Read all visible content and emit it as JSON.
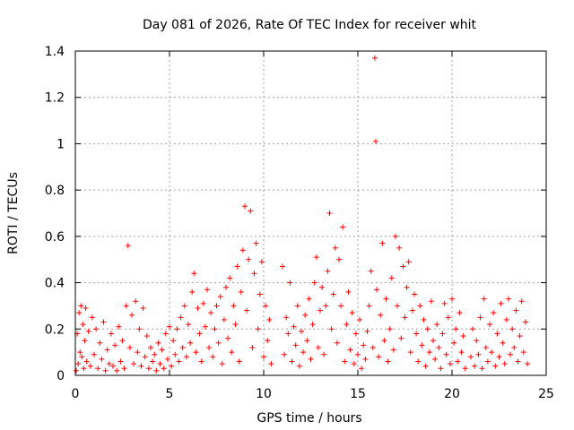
{
  "chart_data": {
    "type": "scatter",
    "title": "Day 081 of 2026, Rate Of TEC Index for receiver whit",
    "xlabel": "GPS time / hours",
    "ylabel": "ROTI / TECUs",
    "xlim": [
      0,
      25
    ],
    "ylim": [
      0,
      1.4
    ],
    "xticks": [
      0,
      5,
      10,
      15,
      20,
      25
    ],
    "yticks": [
      0,
      0.2,
      0.4,
      0.6,
      0.8,
      1,
      1.2,
      1.4
    ],
    "xtick_labels": [
      "0",
      "5",
      "10",
      "15",
      "20",
      "25"
    ],
    "ytick_labels": [
      "0",
      "0.2",
      "0.4",
      "0.6",
      "0.8",
      "1",
      "1.2",
      "1.4"
    ],
    "grid": true,
    "marker": "plus",
    "series_color": "#ff0000",
    "series": [
      {
        "name": "ROTI",
        "points": [
          [
            0.05,
            0.02
          ],
          [
            0.1,
            0.18
          ],
          [
            0.15,
            0.05
          ],
          [
            0.2,
            0.27
          ],
          [
            0.25,
            0.1
          ],
          [
            0.3,
            0.3
          ],
          [
            0.35,
            0.08
          ],
          [
            0.4,
            0.22
          ],
          [
            0.45,
            0.03
          ],
          [
            0.5,
            0.15
          ],
          [
            0.55,
            0.29
          ],
          [
            0.6,
            0.06
          ],
          [
            0.7,
            0.19
          ],
          [
            0.8,
            0.04
          ],
          [
            0.9,
            0.25
          ],
          [
            1.0,
            0.09
          ],
          [
            1.1,
            0.2
          ],
          [
            1.2,
            0.03
          ],
          [
            1.3,
            0.14
          ],
          [
            1.4,
            0.07
          ],
          [
            1.5,
            0.23
          ],
          [
            1.6,
            0.02
          ],
          [
            1.7,
            0.11
          ],
          [
            1.8,
            0.05
          ],
          [
            1.9,
            0.18
          ],
          [
            2.0,
            0.04
          ],
          [
            2.1,
            0.13
          ],
          [
            2.2,
            0.02
          ],
          [
            2.3,
            0.21
          ],
          [
            2.4,
            0.06
          ],
          [
            2.5,
            0.15
          ],
          [
            2.6,
            0.03
          ],
          [
            2.7,
            0.3
          ],
          [
            2.8,
            0.56
          ],
          [
            2.9,
            0.12
          ],
          [
            3.0,
            0.26
          ],
          [
            3.1,
            0.05
          ],
          [
            3.2,
            0.32
          ],
          [
            3.3,
            0.1
          ],
          [
            3.4,
            0.2
          ],
          [
            3.5,
            0.04
          ],
          [
            3.6,
            0.29
          ],
          [
            3.7,
            0.08
          ],
          [
            3.8,
            0.17
          ],
          [
            3.9,
            0.03
          ],
          [
            4.0,
            0.12
          ],
          [
            4.1,
            0.06
          ],
          [
            4.2,
            0.09
          ],
          [
            4.3,
            0.02
          ],
          [
            4.4,
            0.14
          ],
          [
            4.5,
            0.05
          ],
          [
            4.6,
            0.11
          ],
          [
            4.7,
            0.03
          ],
          [
            4.8,
            0.18
          ],
          [
            4.9,
            0.07
          ],
          [
            5.0,
            0.21
          ],
          [
            5.1,
            0.04
          ],
          [
            5.2,
            0.15
          ],
          [
            5.3,
            0.09
          ],
          [
            5.4,
            0.2
          ],
          [
            5.5,
            0.06
          ],
          [
            5.6,
            0.25
          ],
          [
            5.7,
            0.12
          ],
          [
            5.8,
            0.3
          ],
          [
            5.9,
            0.08
          ],
          [
            6.0,
            0.22
          ],
          [
            6.1,
            0.14
          ],
          [
            6.2,
            0.36
          ],
          [
            6.3,
            0.44
          ],
          [
            6.4,
            0.1
          ],
          [
            6.5,
            0.29
          ],
          [
            6.6,
            0.18
          ],
          [
            6.7,
            0.06
          ],
          [
            6.8,
            0.31
          ],
          [
            6.9,
            0.21
          ],
          [
            7.0,
            0.37
          ],
          [
            7.1,
            0.12
          ],
          [
            7.2,
            0.27
          ],
          [
            7.3,
            0.08
          ],
          [
            7.4,
            0.2
          ],
          [
            7.5,
            0.3
          ],
          [
            7.6,
            0.14
          ],
          [
            7.7,
            0.34
          ],
          [
            7.8,
            0.05
          ],
          [
            7.9,
            0.24
          ],
          [
            8.0,
            0.38
          ],
          [
            8.1,
            0.16
          ],
          [
            8.2,
            0.42
          ],
          [
            8.3,
            0.1
          ],
          [
            8.4,
            0.3
          ],
          [
            8.5,
            0.22
          ],
          [
            8.6,
            0.47
          ],
          [
            8.7,
            0.06
          ],
          [
            8.8,
            0.36
          ],
          [
            8.9,
            0.54
          ],
          [
            9.0,
            0.73
          ],
          [
            9.1,
            0.28
          ],
          [
            9.2,
            0.5
          ],
          [
            9.3,
            0.71
          ],
          [
            9.4,
            0.12
          ],
          [
            9.5,
            0.44
          ],
          [
            9.6,
            0.57
          ],
          [
            9.7,
            0.2
          ],
          [
            9.8,
            0.35
          ],
          [
            9.9,
            0.49
          ],
          [
            10.0,
            0.08
          ],
          [
            10.1,
            0.3
          ],
          [
            10.2,
            0.15
          ],
          [
            10.3,
            0.24
          ],
          [
            10.4,
            0.05
          ],
          [
            11.0,
            0.47
          ],
          [
            11.1,
            0.09
          ],
          [
            11.2,
            0.25
          ],
          [
            11.3,
            0.18
          ],
          [
            11.4,
            0.4
          ],
          [
            11.5,
            0.06
          ],
          [
            11.6,
            0.21
          ],
          [
            11.7,
            0.13
          ],
          [
            11.8,
            0.3
          ],
          [
            11.9,
            0.04
          ],
          [
            12.0,
            0.19
          ],
          [
            12.1,
            0.1
          ],
          [
            12.2,
            0.26
          ],
          [
            12.3,
            0.15
          ],
          [
            12.4,
            0.33
          ],
          [
            12.5,
            0.07
          ],
          [
            12.6,
            0.22
          ],
          [
            12.7,
            0.4
          ],
          [
            12.8,
            0.51
          ],
          [
            12.9,
            0.12
          ],
          [
            13.0,
            0.28
          ],
          [
            13.1,
            0.38
          ],
          [
            13.2,
            0.09
          ],
          [
            13.3,
            0.3
          ],
          [
            13.4,
            0.45
          ],
          [
            13.5,
            0.7
          ],
          [
            13.6,
            0.2
          ],
          [
            13.7,
            0.35
          ],
          [
            13.8,
            0.55
          ],
          [
            13.9,
            0.14
          ],
          [
            14.0,
            0.5
          ],
          [
            14.1,
            0.3
          ],
          [
            14.2,
            0.64
          ],
          [
            14.3,
            0.06
          ],
          [
            14.4,
            0.22
          ],
          [
            14.5,
            0.36
          ],
          [
            14.6,
            0.11
          ],
          [
            14.7,
            0.27
          ],
          [
            14.8,
            0.05
          ],
          [
            14.9,
            0.18
          ],
          [
            15.0,
            0.09
          ],
          [
            15.1,
            0.24
          ],
          [
            15.2,
            0.03
          ],
          [
            15.3,
            0.13
          ],
          [
            15.4,
            0.07
          ],
          [
            15.5,
            0.19
          ],
          [
            15.6,
            0.3
          ],
          [
            15.7,
            0.45
          ],
          [
            15.8,
            0.12
          ],
          [
            15.9,
            1.37
          ],
          [
            15.95,
            1.01
          ],
          [
            16.0,
            0.37
          ],
          [
            16.1,
            0.08
          ],
          [
            16.2,
            0.26
          ],
          [
            16.3,
            0.57
          ],
          [
            16.4,
            0.15
          ],
          [
            16.5,
            0.33
          ],
          [
            16.6,
            0.06
          ],
          [
            16.7,
            0.2
          ],
          [
            16.8,
            0.42
          ],
          [
            16.9,
            0.11
          ],
          [
            17.0,
            0.6
          ],
          [
            17.1,
            0.3
          ],
          [
            17.2,
            0.55
          ],
          [
            17.3,
            0.16
          ],
          [
            17.4,
            0.47
          ],
          [
            17.5,
            0.25
          ],
          [
            17.6,
            0.38
          ],
          [
            17.7,
            0.49
          ],
          [
            17.8,
            0.1
          ],
          [
            17.9,
            0.28
          ],
          [
            18.0,
            0.35
          ],
          [
            18.1,
            0.18
          ],
          [
            18.2,
            0.06
          ],
          [
            18.3,
            0.3
          ],
          [
            18.4,
            0.13
          ],
          [
            18.5,
            0.24
          ],
          [
            18.6,
            0.04
          ],
          [
            18.7,
            0.2
          ],
          [
            18.8,
            0.1
          ],
          [
            18.9,
            0.32
          ],
          [
            19.0,
            0.15
          ],
          [
            19.1,
            0.07
          ],
          [
            19.2,
            0.22
          ],
          [
            19.3,
            0.12
          ],
          [
            19.4,
            0.03
          ],
          [
            19.5,
            0.18
          ],
          [
            19.6,
            0.31
          ],
          [
            19.7,
            0.09
          ],
          [
            19.8,
            0.25
          ],
          [
            19.9,
            0.05
          ],
          [
            20.0,
            0.33
          ],
          [
            20.1,
            0.14
          ],
          [
            20.2,
            0.2
          ],
          [
            20.3,
            0.06
          ],
          [
            20.4,
            0.27
          ],
          [
            20.5,
            0.1
          ],
          [
            20.6,
            0.17
          ],
          [
            20.7,
            0.03
          ],
          [
            21.0,
            0.08
          ],
          [
            21.1,
            0.2
          ],
          [
            21.2,
            0.04
          ],
          [
            21.3,
            0.15
          ],
          [
            21.4,
            0.09
          ],
          [
            21.5,
            0.25
          ],
          [
            21.6,
            0.03
          ],
          [
            21.7,
            0.33
          ],
          [
            21.8,
            0.12
          ],
          [
            21.9,
            0.06
          ],
          [
            22.0,
            0.22
          ],
          [
            22.1,
            0.1
          ],
          [
            22.2,
            0.27
          ],
          [
            22.3,
            0.04
          ],
          [
            22.4,
            0.18
          ],
          [
            22.5,
            0.08
          ],
          [
            22.6,
            0.31
          ],
          [
            22.7,
            0.14
          ],
          [
            22.8,
            0.05
          ],
          [
            22.9,
            0.24
          ],
          [
            23.0,
            0.33
          ],
          [
            23.1,
            0.09
          ],
          [
            23.2,
            0.2
          ],
          [
            23.3,
            0.12
          ],
          [
            23.4,
            0.28
          ],
          [
            23.5,
            0.06
          ],
          [
            23.6,
            0.17
          ],
          [
            23.7,
            0.32
          ],
          [
            23.8,
            0.1
          ],
          [
            23.9,
            0.23
          ],
          [
            24.0,
            0.05
          ]
        ]
      }
    ]
  }
}
